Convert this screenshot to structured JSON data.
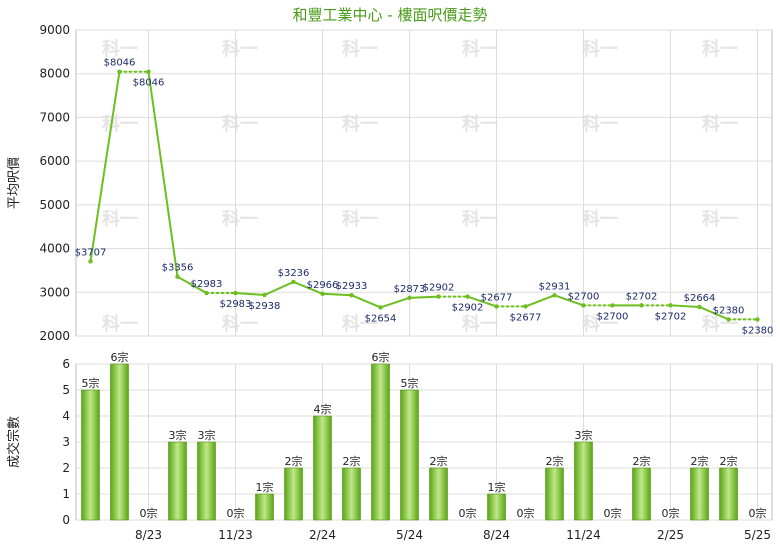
{
  "title": "和豐工業中心 - 樓面呎價走勢",
  "watermark": "科一",
  "colors": {
    "line": "#6cbf1f",
    "bar_dark": "#5aa514",
    "bar_light": "#bfe88a",
    "title": "#4a9a1a"
  },
  "chart_data": [
    {
      "type": "line",
      "ylabel": "平均呎價",
      "ylim": [
        2000,
        9000
      ],
      "yticks": [
        2000,
        3000,
        4000,
        5000,
        6000,
        7000,
        8000,
        9000
      ],
      "x_tick_labels": [
        "8/23",
        "11/23",
        "2/24",
        "5/24",
        "8/24",
        "11/24",
        "2/25",
        "5/25"
      ],
      "x_tick_indices": [
        2,
        5,
        8,
        11,
        14,
        17,
        20,
        23
      ],
      "n_periods": 24,
      "points": [
        {
          "i": 0,
          "value": 3707,
          "label": "$3707"
        },
        {
          "i": 1,
          "value": 8046,
          "label": "$8046"
        },
        {
          "i": 2,
          "value": 8046,
          "label": "$8046"
        },
        {
          "i": 3,
          "value": 3356,
          "label": "$3356"
        },
        {
          "i": 4,
          "value": 2983,
          "label": "$2983"
        },
        {
          "i": 5,
          "value": 2983,
          "label": "$2983"
        },
        {
          "i": 6,
          "value": 2938,
          "label": "$2938"
        },
        {
          "i": 7,
          "value": 3236,
          "label": "$3236"
        },
        {
          "i": 8,
          "value": 2966,
          "label": "$2966"
        },
        {
          "i": 9,
          "value": 2933,
          "label": "$2933"
        },
        {
          "i": 10,
          "value": 2654,
          "label": "$2654"
        },
        {
          "i": 11,
          "value": 2873,
          "label": "$2873"
        },
        {
          "i": 12,
          "value": 2902,
          "label": "$2902"
        },
        {
          "i": 13,
          "value": 2902,
          "label": "$2902"
        },
        {
          "i": 14,
          "value": 2677,
          "label": "$2677"
        },
        {
          "i": 15,
          "value": 2677,
          "label": "$2677"
        },
        {
          "i": 16,
          "value": 2931,
          "label": "$2931"
        },
        {
          "i": 17,
          "value": 2700,
          "label": "$2700"
        },
        {
          "i": 18,
          "value": 2700,
          "label": "$2700"
        },
        {
          "i": 19,
          "value": 2702,
          "label": "$2702"
        },
        {
          "i": 20,
          "value": 2702,
          "label": "$2702"
        },
        {
          "i": 21,
          "value": 2664,
          "label": "$2664"
        },
        {
          "i": 22,
          "value": 2380,
          "label": "$2380"
        },
        {
          "i": 23,
          "value": 2380,
          "label": "$2380"
        }
      ],
      "interpolated_segments": [
        [
          1,
          2
        ],
        [
          4,
          5
        ],
        [
          12,
          13
        ],
        [
          14,
          15
        ],
        [
          17,
          18
        ],
        [
          19,
          20
        ],
        [
          22,
          23
        ]
      ]
    },
    {
      "type": "bar",
      "ylabel": "成交宗數",
      "ylim": [
        0,
        6
      ],
      "yticks": [
        0,
        1,
        2,
        3,
        4,
        5,
        6
      ],
      "x_tick_labels": [
        "8/23",
        "11/23",
        "2/24",
        "5/24",
        "8/24",
        "11/24",
        "2/25",
        "5/25"
      ],
      "x_tick_indices": [
        2,
        5,
        8,
        11,
        14,
        17,
        20,
        23
      ],
      "values": [
        5,
        6,
        0,
        3,
        3,
        0,
        1,
        2,
        4,
        2,
        6,
        5,
        2,
        0,
        1,
        0,
        2,
        3,
        0,
        2,
        0,
        2,
        2,
        0
      ],
      "labels": [
        "5宗",
        "6宗",
        "0宗",
        "3宗",
        "3宗",
        "0宗",
        "1宗",
        "2宗",
        "4宗",
        "2宗",
        "6宗",
        "5宗",
        "2宗",
        "0宗",
        "1宗",
        "0宗",
        "2宗",
        "3宗",
        "0宗",
        "2宗",
        "0宗",
        "2宗",
        "2宗",
        "0宗"
      ]
    }
  ]
}
